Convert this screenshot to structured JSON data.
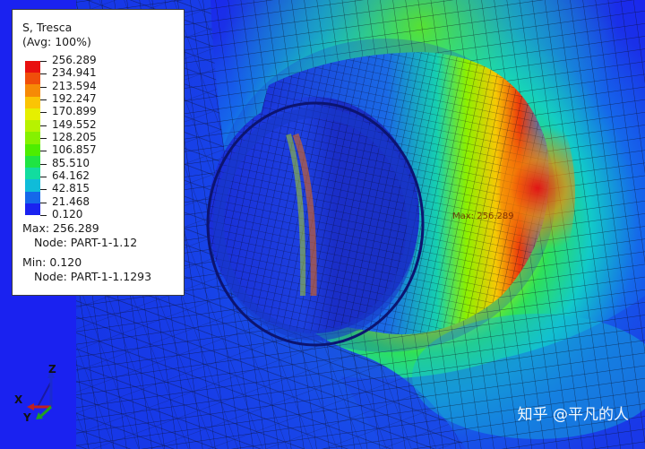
{
  "legend": {
    "variable": "S, Tresca",
    "averaging": "(Avg: 100%)",
    "values": [
      "256.289",
      "234.941",
      "213.594",
      "192.247",
      "170.899",
      "149.552",
      "128.205",
      "106.857",
      "85.510",
      "64.162",
      "42.815",
      "21.468",
      "0.120"
    ],
    "colors": [
      "#e8100f",
      "#f04e0a",
      "#f68a06",
      "#fbc404",
      "#e6ef00",
      "#b7f200",
      "#85f100",
      "#4ded00",
      "#1fe443",
      "#12dc9f",
      "#0fbcd9",
      "#1568ea",
      "#1a22f0"
    ],
    "max_label": "Max: 256.289",
    "max_node": "Node: PART-1-1.12",
    "min_label": "Min: 0.120",
    "min_node": "Node: PART-1-1.1293"
  },
  "viewport": {
    "probe_label": "Max: 256.289",
    "triad": {
      "x": "X",
      "y": "Y",
      "z": "Z"
    },
    "watermark": "知乎 @平凡的人"
  }
}
